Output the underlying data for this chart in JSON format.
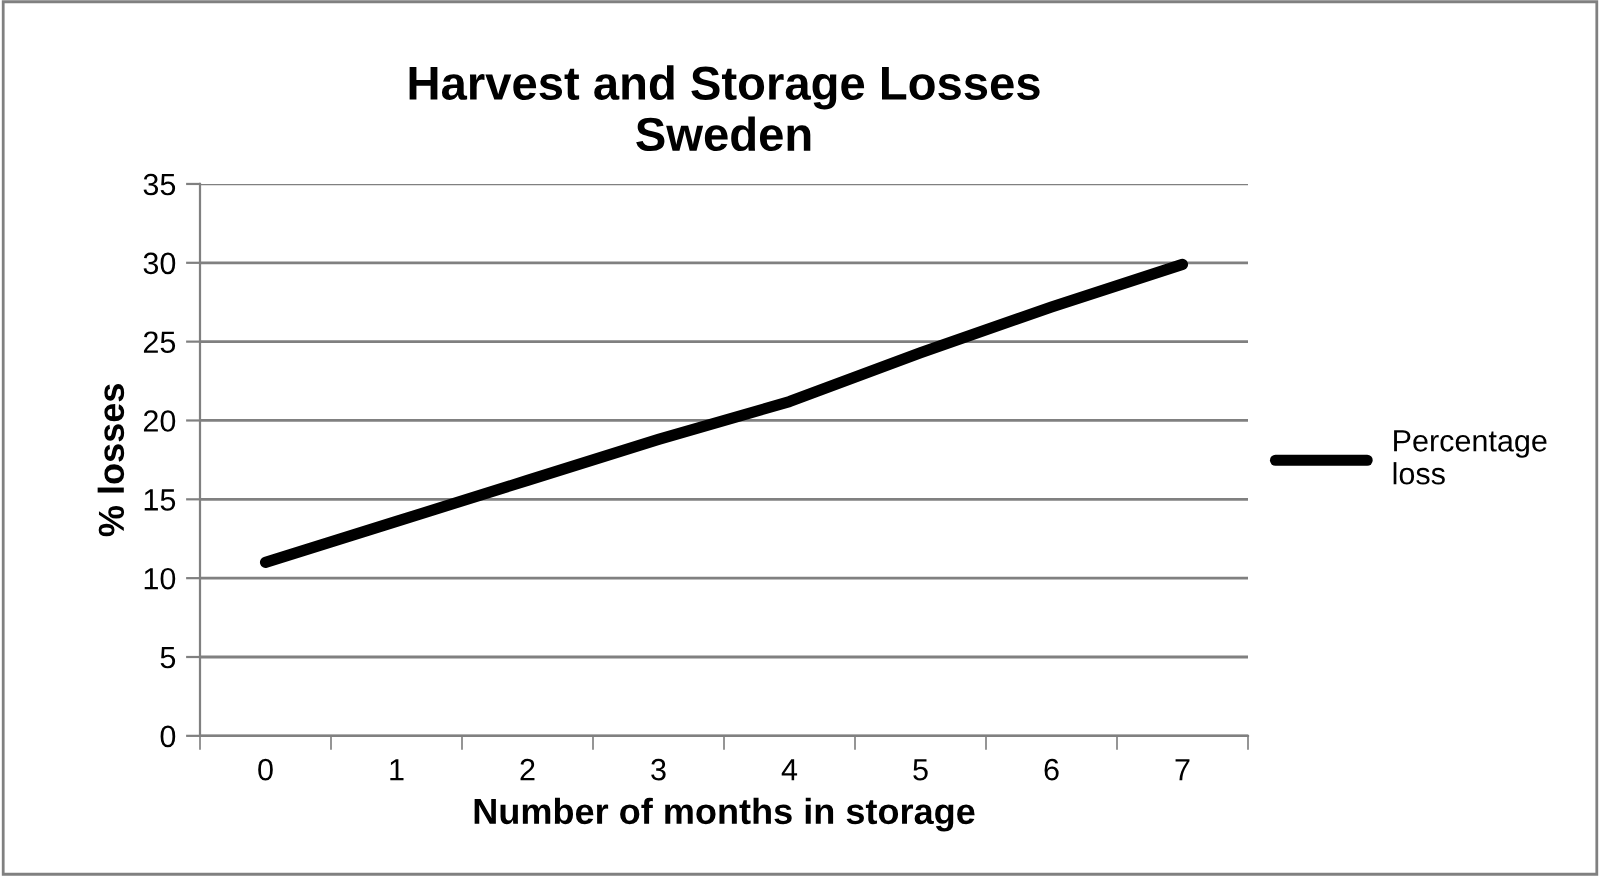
{
  "chart_data": {
    "type": "line",
    "title": "Harvest and Storage Losses\nSweden",
    "xlabel": "Number of months in storage",
    "ylabel": "% losses",
    "categories": [
      "0",
      "1",
      "2",
      "3",
      "4",
      "5",
      "6",
      "7"
    ],
    "series": [
      {
        "name": "Percentage\nloss",
        "color": "#000000",
        "values": [
          11,
          13.6,
          16.2,
          18.8,
          21.2,
          24.3,
          27.2,
          29.9
        ]
      }
    ],
    "ylim": [
      0,
      35
    ],
    "yticks": [
      0,
      5,
      10,
      15,
      20,
      25,
      30,
      35
    ],
    "grid": "y",
    "legend": "right",
    "marker": "none",
    "line_style": "solid"
  }
}
